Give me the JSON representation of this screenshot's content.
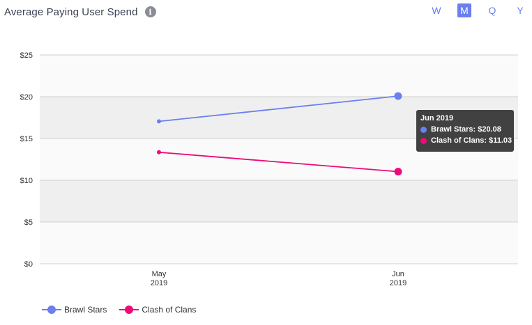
{
  "header": {
    "title": "Average Paying User Spend",
    "info_icon": "info-icon",
    "periods": [
      "W",
      "M",
      "Q",
      "Y"
    ],
    "active_period": "M"
  },
  "tooltip": {
    "title": "Jun 2019",
    "rows": [
      {
        "label": "Brawl Stars: $20.08",
        "color": "#6b7ff0"
      },
      {
        "label": "Clash of Clans: $11.03",
        "color": "#ee0a77"
      }
    ]
  },
  "chart_data": {
    "type": "line",
    "categories": [
      [
        "May",
        "2019"
      ],
      [
        "Jun",
        "2019"
      ]
    ],
    "series": [
      {
        "name": "Brawl Stars",
        "color": "#6b7ff0",
        "values": [
          17.05,
          20.08
        ]
      },
      {
        "name": "Clash of Clans",
        "color": "#ee0a77",
        "values": [
          13.35,
          11.03
        ]
      }
    ],
    "y_ticks": [
      "$0",
      "$5",
      "$10",
      "$15",
      "$20",
      "$25"
    ],
    "ylim": [
      0,
      25
    ],
    "highlighted_category": 1,
    "grid": true,
    "legend_position": "bottom-left"
  }
}
